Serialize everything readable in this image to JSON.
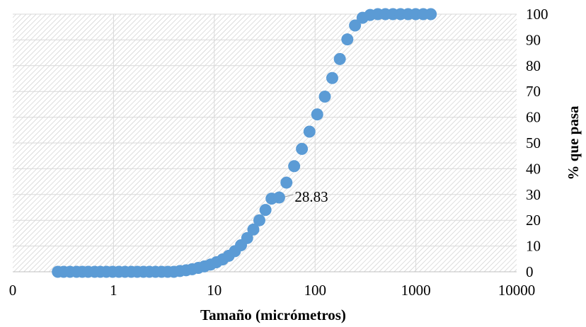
{
  "chart_data": {
    "type": "scatter",
    "title": "",
    "xlabel": "Tamaño (micrómetros)",
    "ylabel": "% que pasa",
    "x_scale": "log",
    "xlim": [
      0.1,
      10000
    ],
    "ylim": [
      0,
      100
    ],
    "x_tick_labels": [
      "0",
      "1",
      "10",
      "100",
      "1000",
      "10000"
    ],
    "y_tick_labels": [
      "0",
      "10",
      "20",
      "30",
      "40",
      "50",
      "60",
      "70",
      "80",
      "90",
      "100"
    ],
    "y_axis_side": "right",
    "grid": true,
    "plot_background": "diagonal hatch",
    "marker_color": "#5b9bd5",
    "leader_line_color": "#a6a6a6",
    "annotation": {
      "text": "28.83",
      "x": 44,
      "y": 28.83
    },
    "series": [
      {
        "points": [
          [
            0.28,
            0
          ],
          [
            0.32,
            0
          ],
          [
            0.37,
            0
          ],
          [
            0.43,
            0
          ],
          [
            0.49,
            0
          ],
          [
            0.56,
            0
          ],
          [
            0.65,
            0
          ],
          [
            0.74,
            0
          ],
          [
            0.85,
            0
          ],
          [
            0.98,
            0
          ],
          [
            1.13,
            0
          ],
          [
            1.3,
            0
          ],
          [
            1.5,
            0
          ],
          [
            1.72,
            0
          ],
          [
            1.98,
            0
          ],
          [
            2.27,
            0
          ],
          [
            2.61,
            0
          ],
          [
            3.0,
            0
          ],
          [
            3.45,
            0
          ],
          [
            3.97,
            0
          ],
          [
            4.56,
            0.3
          ],
          [
            5.25,
            0.6
          ],
          [
            6.03,
            1.0
          ],
          [
            6.94,
            1.5
          ],
          [
            7.98,
            2.1
          ],
          [
            9.17,
            2.8
          ],
          [
            10.5,
            3.7
          ],
          [
            12.1,
            4.8
          ],
          [
            13.9,
            6.2
          ],
          [
            16.0,
            8.0
          ],
          [
            18.4,
            10.3
          ],
          [
            21.2,
            13.1
          ],
          [
            24.4,
            16.4
          ],
          [
            28.0,
            20.0
          ],
          [
            32.2,
            24.0
          ],
          [
            37.0,
            28.4
          ],
          [
            44.0,
            28.83
          ],
          [
            52.0,
            34.6
          ],
          [
            62.0,
            41.0
          ],
          [
            74.0,
            47.7
          ],
          [
            88.0,
            54.4
          ],
          [
            105.0,
            61.1
          ],
          [
            125.0,
            68.0
          ],
          [
            148.0,
            75.2
          ],
          [
            176.0,
            82.6
          ],
          [
            209.0,
            90.2
          ],
          [
            249.0,
            95.6
          ],
          [
            296.0,
            98.6
          ],
          [
            352.0,
            99.7
          ],
          [
            419.0,
            100
          ],
          [
            498.0,
            100
          ],
          [
            592.0,
            100
          ],
          [
            704.0,
            100
          ],
          [
            837.0,
            100
          ],
          [
            995.0,
            100
          ],
          [
            1183.0,
            100
          ],
          [
            1406.0,
            100
          ]
        ]
      }
    ]
  }
}
